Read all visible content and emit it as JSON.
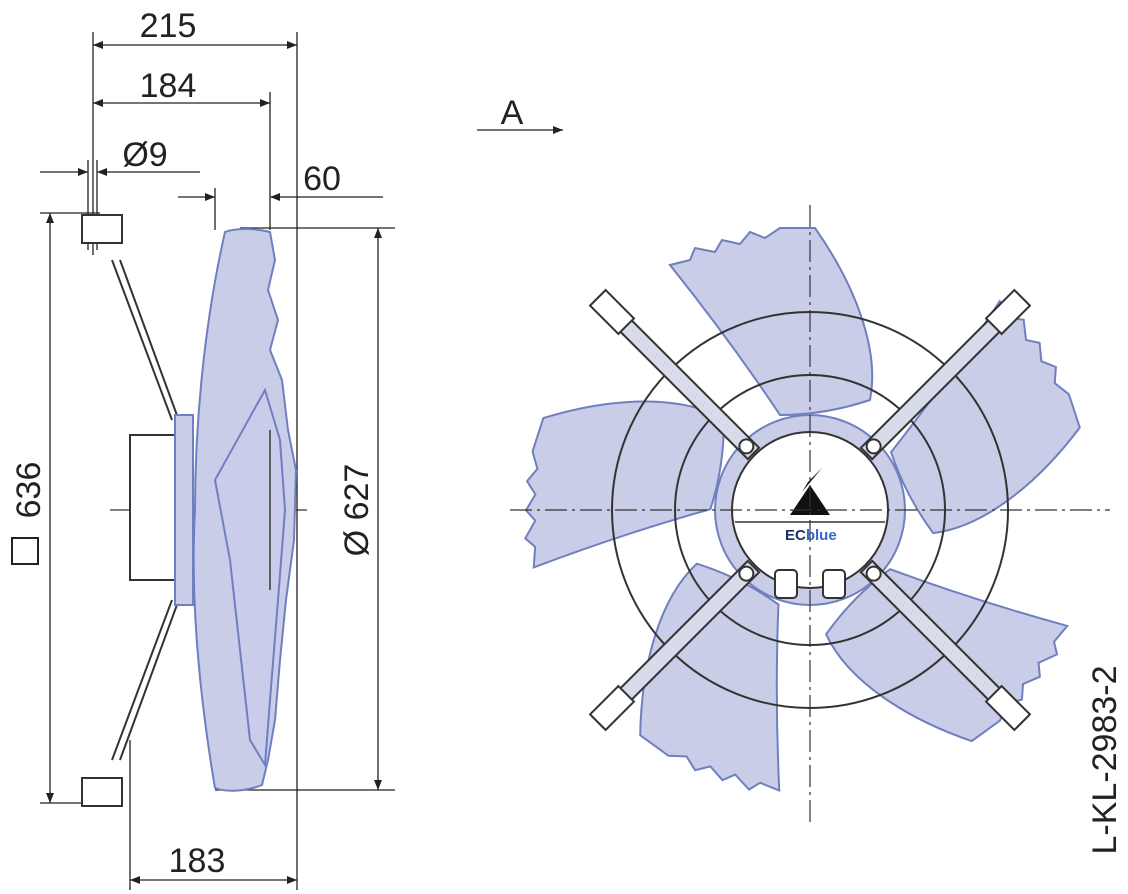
{
  "side_view": {
    "dim_total_depth": "215",
    "dim_mount_depth": "184",
    "dim_hole": "Ø9",
    "dim_offset": "60",
    "dim_square": "636",
    "dim_diameter": "Ø 627",
    "dim_motor": "183"
  },
  "view_arrow": "A",
  "drawing_id": "L-KL-2983-2",
  "logo": {
    "part1": "EC",
    "part2": "blue"
  }
}
